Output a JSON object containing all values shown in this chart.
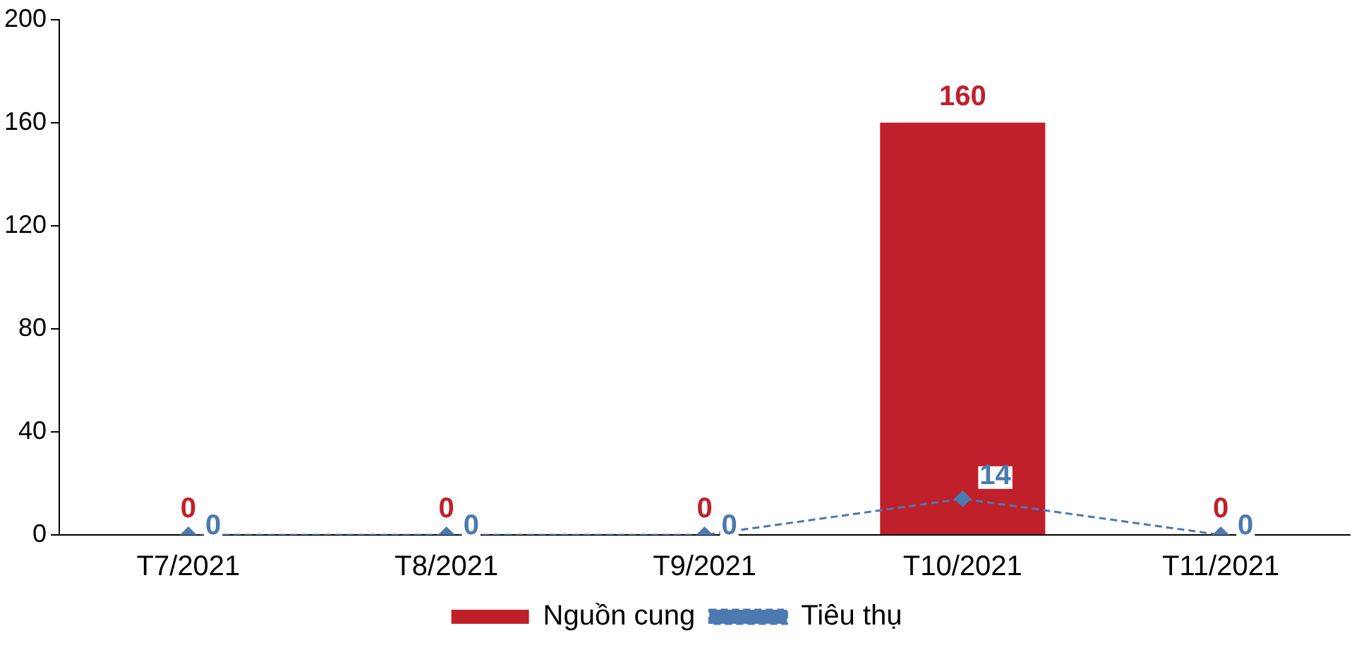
{
  "chart_data": {
    "type": "bar",
    "categories": [
      "T7/2021",
      "T8/2021",
      "T9/2021",
      "T10/2021",
      "T11/2021"
    ],
    "series": [
      {
        "name": "Nguồn cung",
        "color": "#c0202a",
        "values": [
          0,
          0,
          0,
          160,
          0
        ]
      },
      {
        "name": "Tiêu thụ",
        "type": "line",
        "color": "#4a7ab0",
        "values": [
          0,
          0,
          0,
          14,
          0
        ],
        "marker": "diamond",
        "line_style": "dashed"
      }
    ],
    "ylim": [
      0,
      200
    ],
    "yticks": [
      0,
      40,
      80,
      120,
      160,
      200
    ],
    "grid": false,
    "legend": "bottom",
    "data_labels": true
  }
}
